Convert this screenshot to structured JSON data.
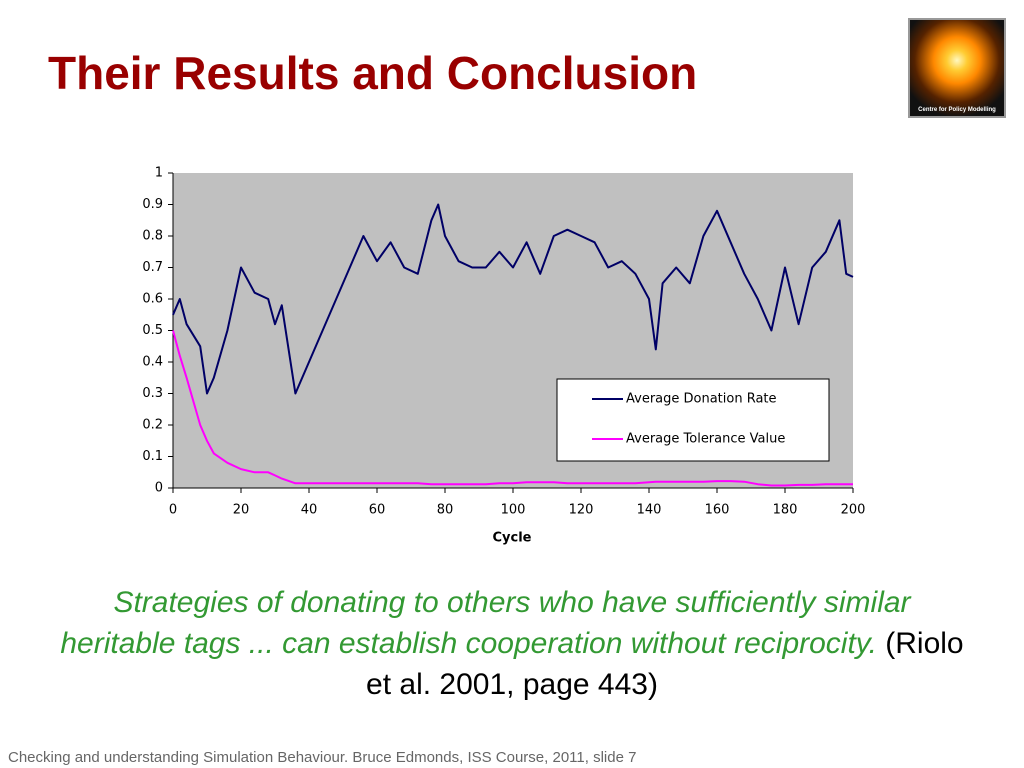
{
  "slide": {
    "title": "Their Results and Conclusion",
    "quote": "Strategies of donating to others who have sufficiently similar heritable tags ... can establish cooperation without reciprocity.",
    "citation": " (Riolo et al. 2001, page 443)",
    "footer": "Checking and understanding Simulation Behaviour. Bruce Edmonds,  ISS Course, 2011, slide 7",
    "logo": "Centre for Policy Modelling"
  },
  "chart_data": {
    "type": "line",
    "xlabel": "Cycle",
    "x": [
      0,
      2,
      4,
      8,
      10,
      12,
      16,
      20,
      24,
      28,
      30,
      32,
      36,
      40,
      44,
      48,
      52,
      56,
      60,
      64,
      68,
      72,
      76,
      78,
      80,
      84,
      88,
      92,
      96,
      100,
      104,
      108,
      112,
      116,
      120,
      124,
      128,
      132,
      136,
      140,
      142,
      144,
      148,
      152,
      156,
      160,
      164,
      168,
      172,
      176,
      180,
      184,
      188,
      192,
      196,
      198,
      200
    ],
    "series": [
      {
        "name": "Average Donation Rate",
        "color": "#000066",
        "values": [
          0.55,
          0.6,
          0.52,
          0.45,
          0.3,
          0.35,
          0.5,
          0.7,
          0.62,
          0.6,
          0.52,
          0.58,
          0.3,
          0.4,
          0.5,
          0.6,
          0.7,
          0.8,
          0.72,
          0.78,
          0.7,
          0.68,
          0.85,
          0.9,
          0.8,
          0.72,
          0.7,
          0.7,
          0.75,
          0.7,
          0.78,
          0.68,
          0.8,
          0.82,
          0.8,
          0.78,
          0.7,
          0.72,
          0.68,
          0.6,
          0.44,
          0.65,
          0.7,
          0.65,
          0.8,
          0.88,
          0.78,
          0.68,
          0.6,
          0.5,
          0.7,
          0.52,
          0.7,
          0.75,
          0.85,
          0.68,
          0.67
        ]
      },
      {
        "name": "Average Tolerance Value",
        "color": "#ff00ff",
        "values": [
          0.5,
          0.42,
          0.35,
          0.2,
          0.15,
          0.11,
          0.08,
          0.06,
          0.05,
          0.05,
          0.04,
          0.03,
          0.015,
          0.015,
          0.015,
          0.015,
          0.015,
          0.015,
          0.015,
          0.015,
          0.015,
          0.015,
          0.012,
          0.012,
          0.012,
          0.012,
          0.012,
          0.012,
          0.015,
          0.015,
          0.018,
          0.018,
          0.018,
          0.015,
          0.015,
          0.015,
          0.015,
          0.015,
          0.015,
          0.018,
          0.02,
          0.02,
          0.02,
          0.02,
          0.02,
          0.022,
          0.022,
          0.02,
          0.012,
          0.008,
          0.008,
          0.01,
          0.01,
          0.012,
          0.012,
          0.012,
          0.012
        ]
      }
    ],
    "xlim": [
      0,
      200
    ],
    "xticks": [
      0,
      20,
      40,
      60,
      80,
      100,
      120,
      140,
      160,
      180,
      200
    ],
    "ylim": [
      0,
      1
    ],
    "yticks": [
      0,
      0.1,
      0.2,
      0.3,
      0.4,
      0.5,
      0.6,
      0.7,
      0.8,
      0.9,
      1
    ],
    "plot_color": "#c0c0c0",
    "legend": "lower right"
  }
}
